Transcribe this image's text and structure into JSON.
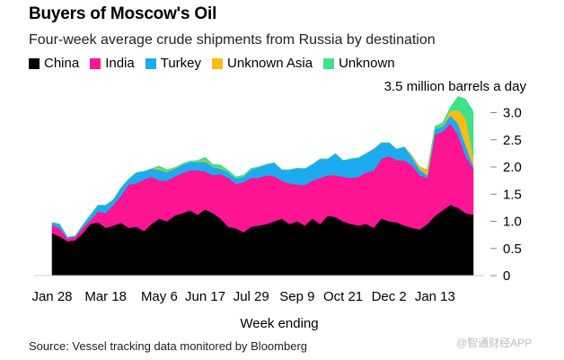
{
  "title": "Buyers of Moscow's Oil",
  "subtitle": "Four-week average crude shipments from Russia by destination",
  "unit_label": "3.5 million barrels a day",
  "source": "Source: Vessel tracking data monitored by Bloomberg",
  "watermark": "@智通财经APP",
  "legend": [
    {
      "name": "China",
      "color": "#000000"
    },
    {
      "name": "India",
      "color": "#ff1493"
    },
    {
      "name": "Turkey",
      "color": "#1eaaf1"
    },
    {
      "name": "Unknown Asia",
      "color": "#fcbc14"
    },
    {
      "name": "Unknown",
      "color": "#3fe08a"
    }
  ],
  "chart_data": {
    "type": "area",
    "stacked": true,
    "title": "Buyers of Moscow's Oil",
    "subtitle": "Four-week average crude shipments from Russia by destination",
    "xlabel": "Week ending",
    "ylabel": "million barrels a day",
    "ylim": [
      0,
      3.5
    ],
    "yticks": [
      0,
      0.5,
      1.0,
      1.5,
      2.0,
      2.5,
      3.0
    ],
    "ytick_labels": [
      "0",
      "0.5",
      "1.0",
      "1.5",
      "2.0",
      "2.5",
      "3.0"
    ],
    "x_ticks": [
      "Jan 28",
      "Mar 18",
      "May 6",
      "Jun 17",
      "Jul 29",
      "Sep 9",
      "Oct 21",
      "Dec 2",
      "Jan 13"
    ],
    "x_tick_index": [
      0,
      7,
      14,
      20,
      26,
      32,
      38,
      44,
      50
    ],
    "x": [
      "Jan 28",
      "Feb 4",
      "Feb 11",
      "Feb 18",
      "Feb 25",
      "Mar 4",
      "Mar 11",
      "Mar 18",
      "Mar 25",
      "Apr 1",
      "Apr 8",
      "Apr 15",
      "Apr 22",
      "Apr 29",
      "May 6",
      "May 13",
      "May 20",
      "May 27",
      "Jun 3",
      "Jun 10",
      "Jun 17",
      "Jun 24",
      "Jul 1",
      "Jul 8",
      "Jul 15",
      "Jul 22",
      "Jul 29",
      "Aug 5",
      "Aug 12",
      "Aug 19",
      "Aug 26",
      "Sep 2",
      "Sep 9",
      "Sep 16",
      "Sep 23",
      "Sep 30",
      "Oct 7",
      "Oct 14",
      "Oct 21",
      "Oct 28",
      "Nov 4",
      "Nov 11",
      "Nov 18",
      "Nov 25",
      "Dec 2",
      "Dec 9",
      "Dec 16",
      "Dec 23",
      "Dec 30",
      "Jan 6",
      "Jan 13",
      "Jan 20",
      "Jan 27",
      "Feb 3",
      "Feb 10",
      "Feb 17"
    ],
    "series": [
      {
        "name": "China",
        "color": "#000000",
        "values": [
          0.78,
          0.72,
          0.63,
          0.65,
          0.78,
          0.95,
          0.98,
          0.88,
          0.92,
          0.97,
          0.88,
          0.9,
          0.82,
          0.95,
          1.05,
          1.0,
          1.1,
          1.15,
          1.2,
          1.12,
          1.22,
          1.15,
          1.05,
          0.9,
          0.87,
          0.8,
          0.9,
          0.92,
          0.95,
          1.0,
          1.05,
          0.95,
          1.0,
          0.92,
          1.05,
          0.95,
          1.1,
          1.08,
          1.0,
          0.95,
          0.92,
          0.95,
          0.88,
          1.05,
          1.0,
          0.98,
          0.92,
          0.88,
          0.85,
          0.95,
          1.1,
          1.2,
          1.3,
          1.25,
          1.15,
          1.12
        ]
      },
      {
        "name": "India",
        "color": "#ff1493",
        "values": [
          0.15,
          0.15,
          0.05,
          0.06,
          0.1,
          0.07,
          0.2,
          0.27,
          0.38,
          0.5,
          0.8,
          0.8,
          0.95,
          0.87,
          0.7,
          0.75,
          0.72,
          0.74,
          0.74,
          0.82,
          0.7,
          0.7,
          0.82,
          0.9,
          0.82,
          0.92,
          0.9,
          0.88,
          0.9,
          0.83,
          0.7,
          0.75,
          0.68,
          0.75,
          0.7,
          0.85,
          0.75,
          0.77,
          0.82,
          0.85,
          0.9,
          0.95,
          1.05,
          1.1,
          1.2,
          1.15,
          1.2,
          1.15,
          1.0,
          0.85,
          1.5,
          1.45,
          1.5,
          1.35,
          1.05,
          0.85
        ]
      },
      {
        "name": "Turkey",
        "color": "#1eaaf1",
        "values": [
          0.05,
          0.08,
          0.03,
          0.02,
          0.05,
          0.1,
          0.12,
          0.15,
          0.1,
          0.15,
          0.1,
          0.2,
          0.15,
          0.15,
          0.2,
          0.15,
          0.15,
          0.15,
          0.15,
          0.15,
          0.18,
          0.15,
          0.1,
          0.1,
          0.1,
          0.1,
          0.15,
          0.2,
          0.2,
          0.25,
          0.2,
          0.25,
          0.3,
          0.3,
          0.3,
          0.35,
          0.3,
          0.4,
          0.3,
          0.35,
          0.35,
          0.35,
          0.4,
          0.3,
          0.25,
          0.2,
          0.25,
          0.15,
          0.1,
          0.05,
          0.1,
          0.1,
          0.15,
          0.2,
          0.2,
          0.05
        ]
      },
      {
        "name": "Unknown Asia",
        "color": "#fcbc14",
        "values": [
          0,
          0,
          0,
          0,
          0,
          0,
          0,
          0,
          0,
          0,
          0,
          0,
          0,
          0,
          0.03,
          0,
          0.02,
          0,
          0,
          0,
          0.03,
          0,
          0.02,
          0,
          0,
          0,
          0,
          0,
          0,
          0,
          0,
          0,
          0,
          0,
          0,
          0,
          0,
          0,
          0,
          0,
          0,
          0,
          0,
          0,
          0,
          0,
          0,
          0.03,
          0.05,
          0.1,
          0,
          0.02,
          0.08,
          0.25,
          0.5,
          0.15
        ]
      },
      {
        "name": "Unknown",
        "color": "#3fe08a",
        "values": [
          0,
          0,
          0,
          0,
          0,
          0,
          0,
          0,
          0,
          0,
          0,
          0,
          0,
          0,
          0.04,
          0.05,
          0,
          0.02,
          0.02,
          0.03,
          0.05,
          0.05,
          0.05,
          0.04,
          0.03,
          0.03,
          0.03,
          0,
          0,
          0,
          0,
          0,
          0,
          0,
          0,
          0,
          0,
          0,
          0,
          0,
          0,
          0,
          0,
          0,
          0,
          0,
          0,
          0,
          0,
          0,
          0.05,
          0.05,
          0.07,
          0.25,
          0.35,
          0.85
        ]
      }
    ],
    "annotation": "3.5 million barrels a day"
  }
}
